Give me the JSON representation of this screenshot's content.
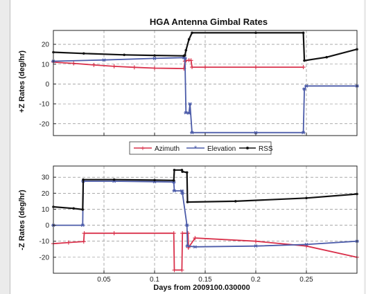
{
  "chart_data": [
    {
      "type": "line",
      "title": "HGA Antenna Gimbal Rates",
      "xlabel": "",
      "ylabel": "+Z Rates (deg/hr)",
      "xlim": [
        0,
        0.3
      ],
      "ylim": [
        -26,
        27
      ],
      "yticks": [
        -20,
        -10,
        0,
        10,
        20
      ],
      "grid": true,
      "legend": {
        "position": "bottom-center",
        "entries": [
          "Azimuth",
          "Elevation",
          "RSS"
        ]
      },
      "series": [
        {
          "name": "Azimuth",
          "color": "#d9304a",
          "marker": "+",
          "x": [
            0,
            0.02,
            0.04,
            0.06,
            0.08,
            0.1,
            0.129,
            0.13,
            0.131,
            0.134,
            0.136,
            0.137,
            0.15,
            0.2,
            0.247
          ],
          "y": [
            11,
            10.4,
            9.6,
            8.9,
            8.4,
            8.0,
            7.8,
            11.5,
            11.8,
            12,
            11.9,
            8.5,
            8.5,
            8.5,
            8.5
          ]
        },
        {
          "name": "Elevation",
          "color": "#4a5aa8",
          "marker": "*",
          "x": [
            0,
            0.05,
            0.1,
            0.129,
            0.13,
            0.131,
            0.134,
            0.135,
            0.137,
            0.2,
            0.247,
            0.248,
            0.25,
            0.3
          ],
          "y": [
            11.5,
            12.1,
            12.9,
            13.3,
            13,
            -14.5,
            -14.7,
            -10,
            -24.5,
            -24.5,
            -24.5,
            -2.5,
            -1,
            -1
          ]
        },
        {
          "name": "RSS",
          "color": "#111111",
          "marker": ".",
          "x": [
            0,
            0.03,
            0.07,
            0.1,
            0.129,
            0.13,
            0.131,
            0.134,
            0.137,
            0.2,
            0.247,
            0.248,
            0.27,
            0.3
          ],
          "y": [
            16,
            15.4,
            14.7,
            14.4,
            14.2,
            14.5,
            17,
            22.5,
            25.8,
            25.8,
            25.8,
            11.8,
            13.5,
            17.5
          ]
        }
      ]
    },
    {
      "type": "line",
      "title": "",
      "xlabel": "Days from 2009100.030000",
      "ylabel": "-Z Rates (deg/hr)",
      "xlim": [
        0,
        0.3
      ],
      "ylim": [
        -30,
        37
      ],
      "yticks": [
        -20,
        -10,
        0,
        10,
        20,
        30
      ],
      "xticks": [
        0.05,
        0.1,
        0.15,
        0.2,
        0.25
      ],
      "xtick_labels": [
        "0.05",
        "0.1",
        "0.15",
        "0.2",
        "0.25"
      ],
      "grid": true,
      "series": [
        {
          "name": "Azimuth",
          "color": "#d9304a",
          "marker": "+",
          "x": [
            0,
            0.015,
            0.03,
            0.0305,
            0.06,
            0.119,
            0.1195,
            0.127,
            0.1275,
            0.133,
            0.1335,
            0.14,
            0.2,
            0.25,
            0.3
          ],
          "y": [
            -11.5,
            -10.8,
            -10.2,
            -5,
            -5,
            -5,
            -28,
            -28,
            -5,
            -5,
            -14,
            -8,
            -10,
            -13,
            -20
          ]
        },
        {
          "name": "Elevation",
          "color": "#4a5aa8",
          "marker": "*",
          "x": [
            0,
            0.029,
            0.0295,
            0.06,
            0.1,
            0.119,
            0.1195,
            0.127,
            0.1275,
            0.132,
            0.1325,
            0.14,
            0.2,
            0.25,
            0.3
          ],
          "y": [
            0,
            0,
            27.5,
            27.5,
            27.2,
            27,
            21.5,
            21.5,
            20,
            0,
            -13,
            -13.5,
            -13,
            -12,
            -10
          ]
        },
        {
          "name": "RSS",
          "color": "#111111",
          "marker": ".",
          "x": [
            0,
            0.02,
            0.029,
            0.0295,
            0.06,
            0.1,
            0.119,
            0.1195,
            0.127,
            0.1275,
            0.132,
            0.1325,
            0.18,
            0.25,
            0.3
          ],
          "y": [
            11.5,
            10.5,
            9.8,
            28.5,
            28.5,
            28.2,
            28,
            34.5,
            34.5,
            33.5,
            33,
            14.5,
            15,
            17,
            19.5
          ]
        }
      ]
    }
  ]
}
